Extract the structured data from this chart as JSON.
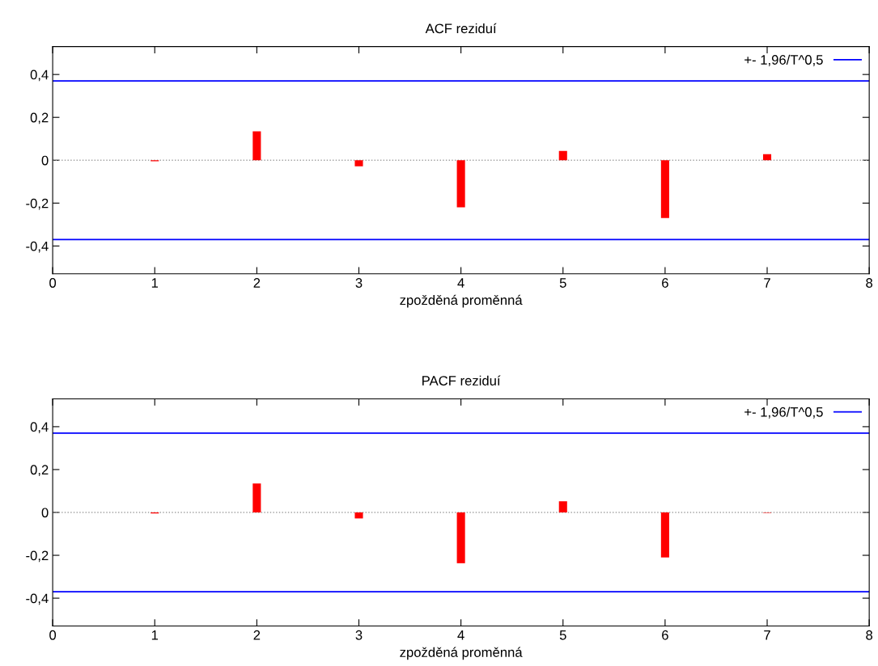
{
  "chart_data": [
    {
      "type": "bar",
      "title": "ACF reziduí",
      "xlabel": "zpožděná proměnná",
      "x": [
        1,
        2,
        3,
        4,
        5,
        6,
        7
      ],
      "series": [
        {
          "color": "#ff0000",
          "values": [
            -0.005,
            0.135,
            -0.028,
            -0.22,
            0.043,
            -0.27,
            0.028
          ]
        }
      ],
      "xlim": [
        0,
        8
      ],
      "xticks": [
        0,
        1,
        2,
        3,
        4,
        5,
        6,
        7,
        8
      ],
      "ylim": [
        -0.53,
        0.53
      ],
      "yticks": [
        {
          "value": -0.4,
          "label": "-0,4"
        },
        {
          "value": -0.2,
          "label": "-0,2"
        },
        0,
        {
          "value": 0.2,
          "label": "0,2"
        },
        {
          "value": 0.4,
          "label": "0,4"
        }
      ],
      "ref_lines": [
        {
          "axis": "y",
          "value": 0.37,
          "label": "+- 1,96/T^0,5",
          "color": "#0000ff",
          "line_style": "solid"
        },
        {
          "axis": "y",
          "value": -0.37,
          "color": "#0000ff",
          "line_style": "solid"
        },
        {
          "axis": "y",
          "value": 0,
          "color": "#a0a0a0",
          "line_style": "dotted"
        }
      ],
      "grid": false,
      "legend": "top right"
    },
    {
      "type": "bar",
      "title": "PACF reziduí",
      "xlabel": "zpožděná proměnná",
      "x": [
        1,
        2,
        3,
        4,
        5,
        6,
        7
      ],
      "series": [
        {
          "color": "#ff0000",
          "values": [
            -0.005,
            0.135,
            -0.028,
            -0.237,
            0.052,
            -0.21,
            -0.002
          ]
        }
      ],
      "xlim": [
        0,
        8
      ],
      "xticks": [
        0,
        1,
        2,
        3,
        4,
        5,
        6,
        7,
        8
      ],
      "ylim": [
        -0.53,
        0.53
      ],
      "yticks": [
        {
          "value": -0.4,
          "label": "-0,4"
        },
        {
          "value": -0.2,
          "label": "-0,2"
        },
        0,
        {
          "value": 0.2,
          "label": "0,2"
        },
        {
          "value": 0.4,
          "label": "0,4"
        }
      ],
      "ref_lines": [
        {
          "axis": "y",
          "value": 0.37,
          "label": "+- 1,96/T^0,5",
          "color": "#0000ff",
          "line_style": "solid"
        },
        {
          "axis": "y",
          "value": -0.37,
          "color": "#0000ff",
          "line_style": "solid"
        },
        {
          "axis": "y",
          "value": 0,
          "color": "#a0a0a0",
          "line_style": "dotted"
        }
      ],
      "grid": false,
      "legend": "top right"
    }
  ]
}
